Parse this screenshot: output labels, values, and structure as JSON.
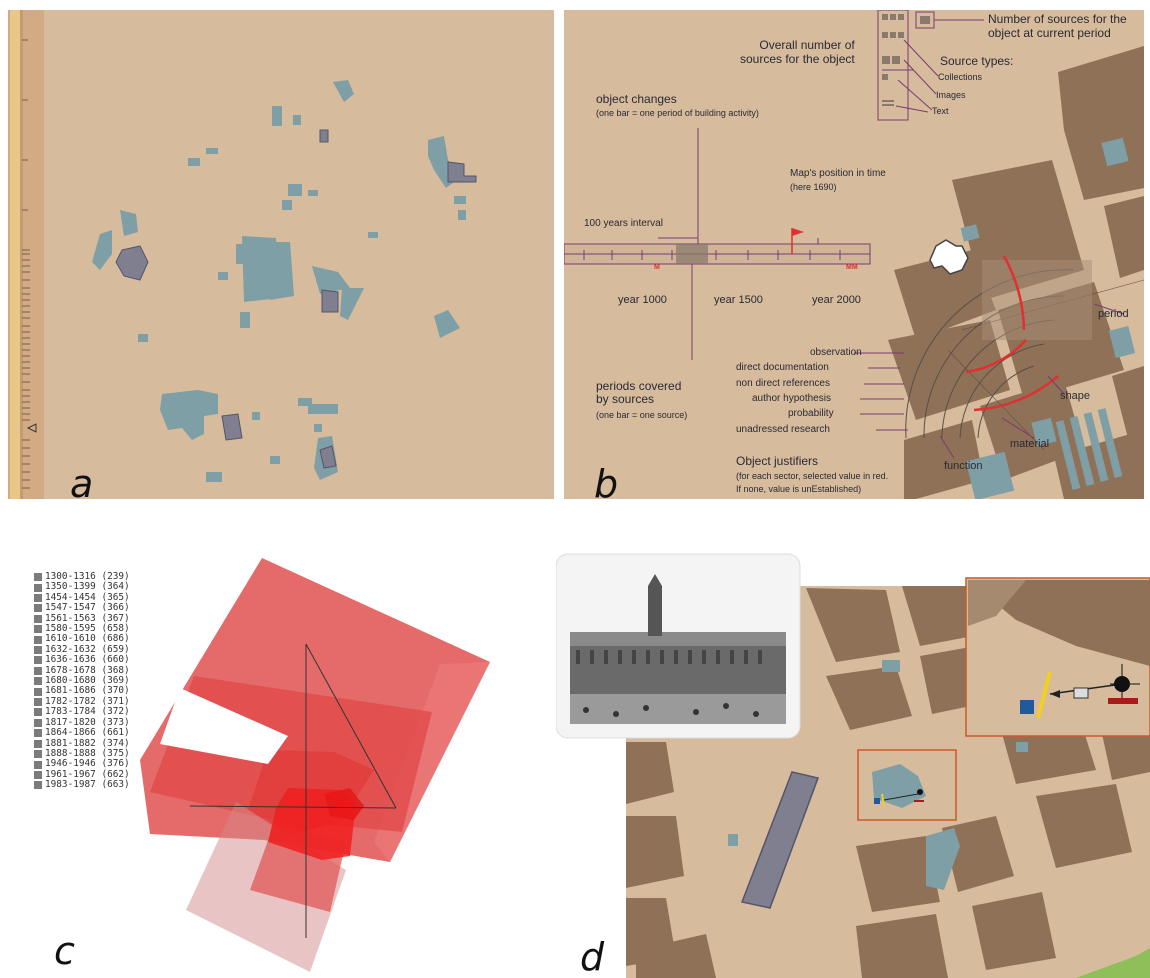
{
  "panel_labels": {
    "a": "a",
    "b": "b",
    "c": "c",
    "d": "d"
  },
  "colors": {
    "ground": "#d6bb9d",
    "block": "#8e7157",
    "street": "#d2b596",
    "building": "#7f9fa6",
    "building_dark": "#7f7f90",
    "annotation": "#6e2f66",
    "highlight": "#e03030",
    "polygon_red": "#e15050"
  },
  "panel_b": {
    "object_changes_title": "object changes",
    "object_changes_sub": "(one bar = one period of building activity)",
    "overall_sources": "Overall number of\nsources for the object",
    "number_sources": "Number of sources for the\nobject at current period",
    "source_types_title": "Source types:",
    "source_types": [
      "Collections",
      "Images",
      "Text"
    ],
    "map_position": "Map's position in time",
    "map_position_sub": "(here 1690)",
    "interval": "100 years interval",
    "year_1000": "year 1000",
    "year_1500": "year 1500",
    "year_2000": "year 2000",
    "tick_m": "M",
    "tick_mm": "MM",
    "periods_title": "periods covered\nby sources",
    "periods_sub": "(one bar = one source)",
    "justifier_items": [
      "observation",
      "direct documentation",
      "non direct references",
      "author hypothesis",
      "probability",
      "unadressed research"
    ],
    "period_label": "period",
    "shape_label": "shape",
    "material_label": "material",
    "function_label": "function",
    "justifiers_title": "Object justifiers",
    "justifiers_sub1": "(for each sector, selected value in red.",
    "justifiers_sub2": "If none, value is unEstablished)"
  },
  "panel_c": {
    "legend": [
      "1300-1316 (239)",
      "1350-1399 (364)",
      "1454-1454 (365)",
      "1547-1547 (366)",
      "1561-1563 (367)",
      "1580-1595 (658)",
      "1610-1610 (686)",
      "1632-1632 (659)",
      "1636-1636 (660)",
      "1678-1678 (368)",
      "1680-1680 (369)",
      "1681-1686 (370)",
      "1782-1782 (371)",
      "1783-1784 (372)",
      "1817-1820 (373)",
      "1864-1866 (661)",
      "1881-1882 (374)",
      "1888-1888 (375)",
      "1946-1946 (376)",
      "1961-1967 (662)",
      "1983-1987 (663)"
    ]
  }
}
